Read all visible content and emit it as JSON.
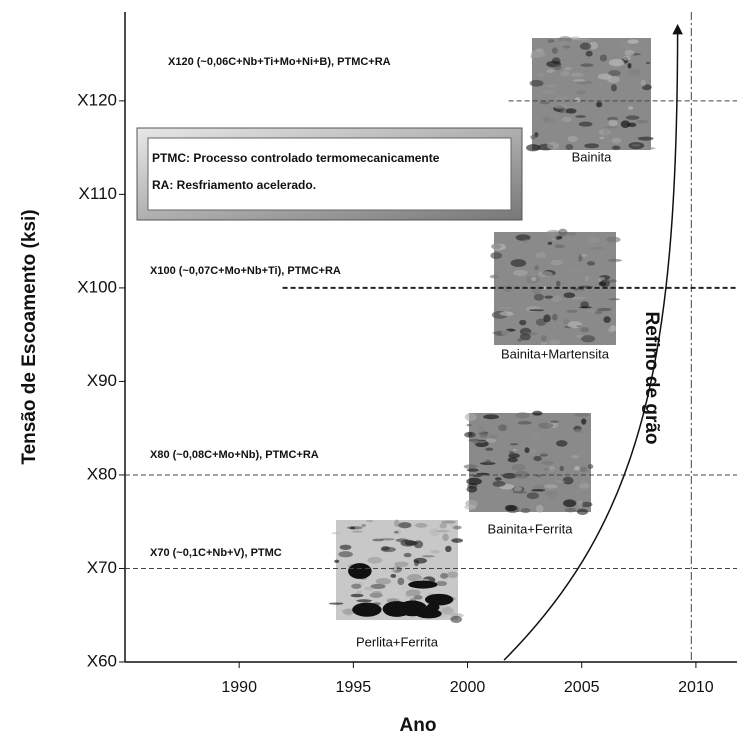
{
  "chart_data": {
    "type": "line",
    "x_label": "Ano",
    "y_label": "Tensão de Escoamento (ksi)",
    "xlim": [
      1985,
      2011.8
    ],
    "xticks": [
      1990,
      1995,
      2000,
      2005,
      2010
    ],
    "ylim": [
      60,
      129.5
    ],
    "yticks": [
      {
        "value": 60,
        "label": "X60"
      },
      {
        "value": 70,
        "label": "X70"
      },
      {
        "value": 80,
        "label": "X80"
      },
      {
        "value": 90,
        "label": "X90"
      },
      {
        "value": 100,
        "label": "X100"
      },
      {
        "value": 110,
        "label": "X110"
      },
      {
        "value": 120,
        "label": "X120"
      }
    ],
    "series": [
      {
        "name": "X70 (~0,1C+Nb+V), PTMC",
        "color": "#444444",
        "x": [
          1985,
          2011.8
        ],
        "values": [
          70,
          70
        ]
      },
      {
        "name": "X80 (~0,08C+Mo+Nb), PTMC+RA",
        "color": "#444444",
        "x": [
          1985,
          2011.8
        ],
        "values": [
          80,
          80
        ]
      },
      {
        "name": "X100 (~0,07C+Mo+Nb+Ti), PTMC+RA",
        "color": "#222222",
        "x": [
          1991.9,
          2011.8
        ],
        "values": [
          100,
          100
        ]
      },
      {
        "name": "X120 (~0,06C+Nb+Ti+Mo+Ni+B), PTMC+RA",
        "color": "#444444",
        "x": [
          2001.8,
          2011.8
        ],
        "values": [
          120,
          120
        ]
      }
    ],
    "vline": 2009.8,
    "arrow": {
      "label": "Refino de grão",
      "x": [
        2001.6,
        2009.2
      ],
      "values": [
        60.2,
        128
      ]
    },
    "micrographs": [
      "Perlita+Ferrita",
      "Bainita+Ferrita",
      "Bainita+Martensita",
      "Bainita"
    ],
    "notes": [
      "PTMC: Processo controlado termomecanicamente",
      "RA: Resfriamento acelerado."
    ]
  }
}
